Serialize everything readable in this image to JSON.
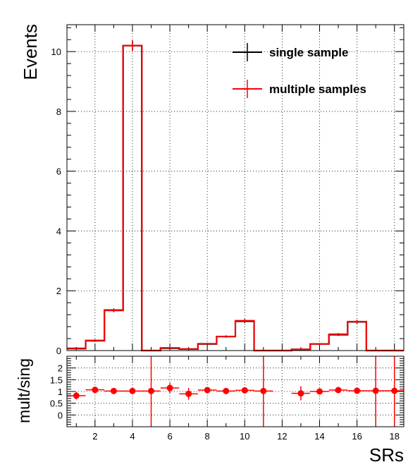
{
  "chart_data": [
    {
      "type": "line",
      "subtype": "histogram-step",
      "title": "",
      "xlabel": "",
      "ylabel": "Events",
      "xlim": [
        0.5,
        18.5
      ],
      "ylim": [
        0,
        10.9
      ],
      "x_ticks": [
        2,
        4,
        6,
        8,
        10,
        12,
        14,
        16,
        18
      ],
      "y_ticks": [
        0,
        2,
        4,
        6,
        8,
        10
      ],
      "grid": true,
      "legend_position": "top-right",
      "bins": [
        1,
        2,
        3,
        4,
        5,
        6,
        7,
        8,
        9,
        10,
        11,
        12,
        13,
        14,
        15,
        16,
        17,
        18
      ],
      "series": [
        {
          "name": "single sample",
          "color": "#000000",
          "values": [
            0.07,
            0.33,
            1.35,
            10.2,
            0.0,
            0.08,
            0.05,
            0.22,
            0.47,
            0.98,
            0.0,
            0.0,
            0.04,
            0.22,
            0.53,
            0.96,
            0.0,
            0.0
          ],
          "errors": [
            0.02,
            0.04,
            0.06,
            0.18,
            0.0,
            0.02,
            0.02,
            0.03,
            0.04,
            0.06,
            0.0,
            0.0,
            0.01,
            0.03,
            0.04,
            0.06,
            0.0,
            0.0
          ]
        },
        {
          "name": "multiple samples",
          "color": "#ff0000",
          "values": [
            0.06,
            0.34,
            1.34,
            10.2,
            0.0,
            0.09,
            0.05,
            0.23,
            0.47,
            1.0,
            0.0,
            0.0,
            0.04,
            0.22,
            0.55,
            0.97,
            0.0,
            0.0
          ],
          "errors": [
            0.02,
            0.04,
            0.06,
            0.18,
            0.0,
            0.02,
            0.02,
            0.03,
            0.04,
            0.06,
            0.0,
            0.0,
            0.01,
            0.03,
            0.04,
            0.06,
            0.0,
            0.0
          ]
        }
      ]
    },
    {
      "type": "scatter",
      "subtype": "ratio",
      "title": "",
      "xlabel": "SRs",
      "ylabel": "mult/sing",
      "xlim": [
        0.5,
        18.5
      ],
      "ylim": [
        -0.5,
        2.5
      ],
      "x_ticks": [
        2,
        4,
        6,
        8,
        10,
        12,
        14,
        16,
        18
      ],
      "y_ticks": [
        0,
        0.5,
        1,
        1.5,
        2
      ],
      "y_tick_labels": [
        "0",
        "0.5",
        "1",
        "1.5",
        "2"
      ],
      "grid": true,
      "color": "#ff0000",
      "points": [
        {
          "x": 1,
          "y": 0.82,
          "err": 0.16
        },
        {
          "x": 2,
          "y": 1.07,
          "err": 0.1
        },
        {
          "x": 3,
          "y": 1.02,
          "err": 0.06
        },
        {
          "x": 4,
          "y": 1.02,
          "err": 0.04
        },
        {
          "x": 5,
          "y": 1.02,
          "err": 1.5
        },
        {
          "x": 6,
          "y": 1.15,
          "err": 0.22
        },
        {
          "x": 7,
          "y": 0.9,
          "err": 0.25
        },
        {
          "x": 8,
          "y": 1.06,
          "err": 0.1
        },
        {
          "x": 9,
          "y": 1.02,
          "err": 0.06
        },
        {
          "x": 10,
          "y": 1.05,
          "err": 0.07
        },
        {
          "x": 11,
          "y": 1.02,
          "err": 1.5
        },
        {
          "x": 13,
          "y": 0.92,
          "err": 0.3
        },
        {
          "x": 14,
          "y": 1.0,
          "err": 0.1
        },
        {
          "x": 15,
          "y": 1.06,
          "err": 0.06
        },
        {
          "x": 16,
          "y": 1.03,
          "err": 0.06
        },
        {
          "x": 17,
          "y": 1.03,
          "err": 1.5
        },
        {
          "x": 18,
          "y": 1.03,
          "err": 1.5
        }
      ]
    }
  ]
}
